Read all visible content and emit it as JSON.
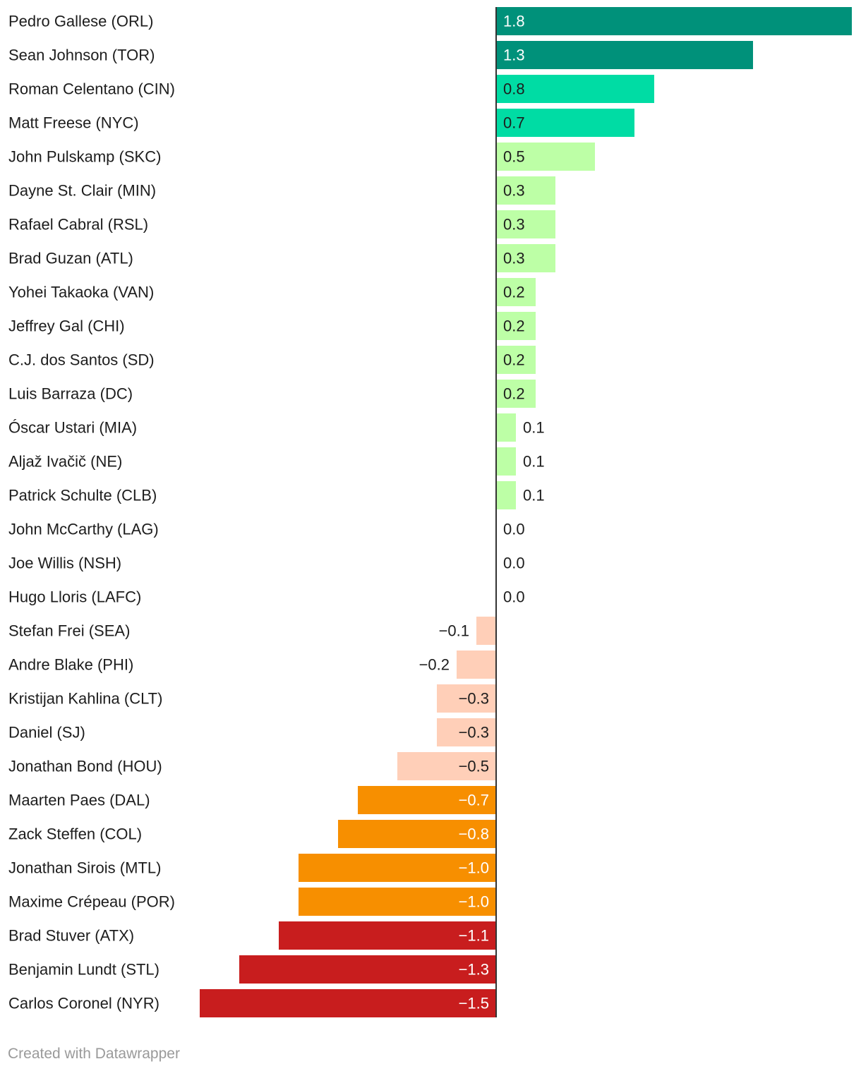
{
  "chart_data": {
    "type": "bar",
    "orientation": "horizontal",
    "title": "",
    "xlabel": "",
    "ylabel": "",
    "xlim": [
      -1.5,
      1.8
    ],
    "grid": false,
    "categories": [
      "Pedro Gallese (ORL)",
      "Sean Johnson (TOR)",
      "Roman Celentano (CIN)",
      "Matt Freese (NYC)",
      "John Pulskamp (SKC)",
      "Dayne St. Clair (MIN)",
      "Rafael Cabral (RSL)",
      "Brad Guzan (ATL)",
      "Yohei Takaoka (VAN)",
      "Jeffrey Gal (CHI)",
      "C.J. dos Santos (SD)",
      "Luis Barraza (DC)",
      "Óscar Ustari (MIA)",
      "Aljaž Ivačič (NE)",
      "Patrick Schulte (CLB)",
      "John McCarthy (LAG)",
      "Joe Willis (NSH)",
      "Hugo Lloris (LAFC)",
      "Stefan Frei (SEA)",
      "Andre Blake (PHI)",
      "Kristijan Kahlina (CLT)",
      "Daniel (SJ)",
      "Jonathan Bond (HOU)",
      "Maarten Paes (DAL)",
      "Zack Steffen (COL)",
      "Jonathan Sirois (MTL)",
      "Maxime Crépeau (POR)",
      "Brad Stuver (ATX)",
      "Benjamin Lundt (STL)",
      "Carlos Coronel (NYR)"
    ],
    "values": [
      1.8,
      1.3,
      0.8,
      0.7,
      0.5,
      0.3,
      0.3,
      0.3,
      0.2,
      0.2,
      0.2,
      0.2,
      0.1,
      0.1,
      0.1,
      0.0,
      0.0,
      0.0,
      -0.1,
      -0.2,
      -0.3,
      -0.3,
      -0.5,
      -0.7,
      -0.8,
      -1.0,
      -1.0,
      -1.1,
      -1.3,
      -1.5
    ],
    "value_labels": [
      "1.8",
      "1.3",
      "0.8",
      "0.7",
      "0.5",
      "0.3",
      "0.3",
      "0.3",
      "0.2",
      "0.2",
      "0.2",
      "0.2",
      "0.1",
      "0.1",
      "0.1",
      "0.0",
      "0.0",
      "0.0",
      "−0.1",
      "−0.2",
      "−0.3",
      "−0.3",
      "−0.5",
      "−0.7",
      "−0.8",
      "−1.0",
      "−1.0",
      "−1.1",
      "−1.3",
      "−1.5"
    ],
    "colors": {
      "very_high": "#00917a",
      "high": "#00dca4",
      "mid_high": "#bdffa6",
      "mid_low": "#ffcfb8",
      "low": "#f78f00",
      "very_low": "#c81d1e",
      "axis": "#333333",
      "label_dark": "#1d1d1d",
      "label_light": "#ffffff"
    }
  },
  "footer": {
    "credit": "Created with Datawrapper"
  }
}
